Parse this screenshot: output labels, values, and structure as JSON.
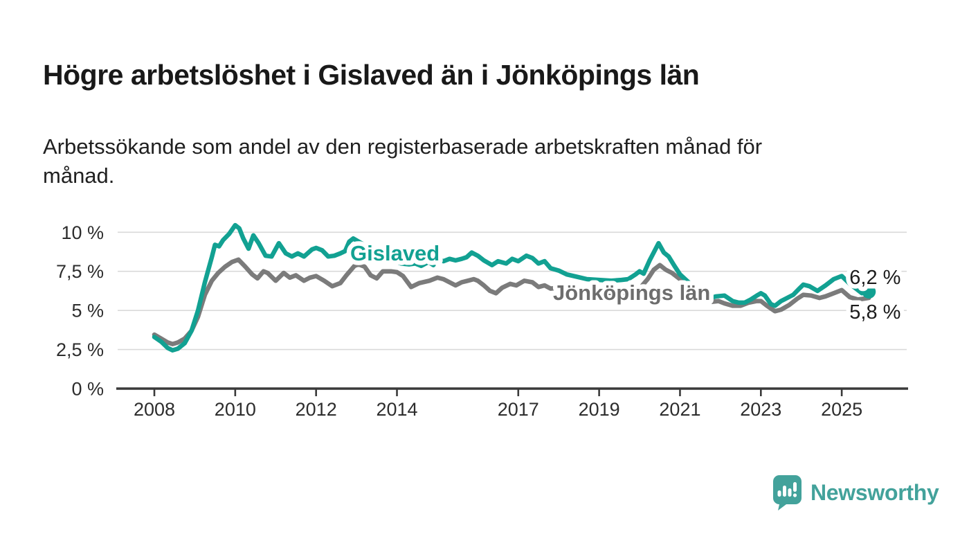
{
  "header": {
    "title": "Högre arbetslöshet i Gislaved än i Jönköpings län",
    "subtitle": "Arbetssökande som andel av den registerbaserade arbetskraften månad för\nmånad."
  },
  "colors": {
    "gislaved_teal": "#12a192",
    "jonkoping_gray": "#7b7b7b",
    "gray_label": "#6d6d6d",
    "gridline": "#d9d9d9",
    "axis": "#3a3a3a",
    "logo_teal": "#43a29b",
    "text_dark": "#1c1c1c"
  },
  "chart_data": {
    "type": "line",
    "unit": "%",
    "grid": "horizontal",
    "x_axis": {
      "ticks": [
        2008,
        2010,
        2012,
        2014,
        2017,
        2019,
        2021,
        2023,
        2025
      ],
      "tick_labels": [
        "2008",
        "2010",
        "2012",
        "2014",
        "2017",
        "2019",
        "2021",
        "2023",
        "2025"
      ],
      "range": [
        2008.0,
        2025.67
      ]
    },
    "y_axis": {
      "ticks": [
        0,
        2.5,
        5,
        7.5,
        10
      ],
      "tick_labels": [
        "0 %",
        "2,5 %",
        "5 %",
        "7,5 %",
        "10 %"
      ],
      "range": [
        0,
        10.45
      ]
    },
    "series": [
      {
        "name": "Gislaved",
        "color": "#12a192",
        "end_value": 6.2,
        "end_label": "6,2 %",
        "x": [
          2008.0,
          2008.17,
          2008.33,
          2008.45,
          2008.58,
          2008.75,
          2008.92,
          2009.08,
          2009.25,
          2009.42,
          2009.5,
          2009.6,
          2009.7,
          2009.85,
          2010.0,
          2010.1,
          2010.2,
          2010.33,
          2010.45,
          2010.58,
          2010.75,
          2010.9,
          2011.08,
          2011.25,
          2011.4,
          2011.55,
          2011.7,
          2011.9,
          2012.0,
          2012.15,
          2012.3,
          2012.45,
          2012.6,
          2012.72,
          2012.82,
          2012.92,
          2013.15,
          2013.4,
          2013.65,
          2013.9,
          2014.1,
          2014.3,
          2014.45,
          2014.6,
          2014.78,
          2014.9,
          2015.0,
          2015.15,
          2015.3,
          2015.45,
          2015.6,
          2015.72,
          2015.85,
          2016.0,
          2016.15,
          2016.35,
          2016.5,
          2016.7,
          2016.85,
          2017.0,
          2017.2,
          2017.35,
          2017.5,
          2017.65,
          2017.8,
          2018.0,
          2018.2,
          2018.45,
          2018.7,
          2019.0,
          2019.3,
          2019.55,
          2019.72,
          2019.9,
          2020.0,
          2020.1,
          2020.25,
          2020.47,
          2020.6,
          2020.72,
          2020.85,
          2021.0,
          2021.15,
          2021.3,
          2021.45,
          2021.6,
          2021.75,
          2021.9,
          2022.1,
          2022.3,
          2022.45,
          2022.6,
          2022.75,
          2022.9,
          2023.0,
          2023.1,
          2023.25,
          2023.35,
          2023.5,
          2023.65,
          2023.8,
          2023.95,
          2024.05,
          2024.2,
          2024.4,
          2024.6,
          2024.8,
          2025.0,
          2025.2,
          2025.35,
          2025.5,
          2025.67
        ],
        "values": [
          3.3,
          3.0,
          2.6,
          2.45,
          2.55,
          2.9,
          3.7,
          5.0,
          6.8,
          8.4,
          9.2,
          9.1,
          9.5,
          9.9,
          10.45,
          10.25,
          9.6,
          8.95,
          9.8,
          9.3,
          8.5,
          8.45,
          9.3,
          8.65,
          8.45,
          8.65,
          8.45,
          8.9,
          9.0,
          8.85,
          8.45,
          8.5,
          8.65,
          8.8,
          9.4,
          9.6,
          9.25,
          8.85,
          8.5,
          8.2,
          8.0,
          7.95,
          8.0,
          7.85,
          8.1,
          7.9,
          8.3,
          8.15,
          8.3,
          8.2,
          8.3,
          8.4,
          8.7,
          8.5,
          8.2,
          7.9,
          8.15,
          8.0,
          8.3,
          8.15,
          8.5,
          8.35,
          8.0,
          8.15,
          7.7,
          7.55,
          7.3,
          7.15,
          7.0,
          6.95,
          6.9,
          6.95,
          7.0,
          7.3,
          7.5,
          7.35,
          8.2,
          9.3,
          8.7,
          8.45,
          7.9,
          7.3,
          6.95,
          6.6,
          6.3,
          6.05,
          5.8,
          5.9,
          5.95,
          5.6,
          5.5,
          5.5,
          5.7,
          5.95,
          6.1,
          5.95,
          5.4,
          5.3,
          5.6,
          5.8,
          6.0,
          6.4,
          6.65,
          6.55,
          6.25,
          6.6,
          7.0,
          7.2,
          6.7,
          6.4,
          6.1,
          6.2
        ]
      },
      {
        "name": "Jönköpings län",
        "color": "#7b7b7b",
        "end_value": 5.8,
        "end_label": "5,8 %",
        "x": [
          2008.0,
          2008.17,
          2008.33,
          2008.45,
          2008.58,
          2008.75,
          2008.92,
          2009.08,
          2009.25,
          2009.42,
          2009.58,
          2009.75,
          2009.92,
          2010.08,
          2010.25,
          2010.42,
          2010.55,
          2010.7,
          2010.8,
          2011.0,
          2011.2,
          2011.35,
          2011.5,
          2011.7,
          2011.85,
          2012.0,
          2012.2,
          2012.4,
          2012.6,
          2012.75,
          2012.95,
          2013.05,
          2013.2,
          2013.35,
          2013.5,
          2013.65,
          2013.85,
          2014.0,
          2014.15,
          2014.35,
          2014.55,
          2014.8,
          2015.0,
          2015.15,
          2015.3,
          2015.45,
          2015.6,
          2015.75,
          2015.9,
          2016.0,
          2016.15,
          2016.3,
          2016.45,
          2016.6,
          2016.8,
          2016.95,
          2017.15,
          2017.35,
          2017.5,
          2017.65,
          2017.8,
          2018.0,
          2018.25,
          2018.5,
          2018.75,
          2019.0,
          2019.25,
          2019.5,
          2019.75,
          2020.0,
          2020.2,
          2020.35,
          2020.5,
          2020.65,
          2020.8,
          2021.0,
          2021.2,
          2021.35,
          2021.5,
          2021.65,
          2021.8,
          2021.95,
          2022.1,
          2022.3,
          2022.5,
          2022.7,
          2022.9,
          2023.0,
          2023.15,
          2023.35,
          2023.5,
          2023.7,
          2023.9,
          2024.05,
          2024.25,
          2024.45,
          2024.6,
          2024.8,
          2025.0,
          2025.2,
          2025.4,
          2025.55,
          2025.67
        ],
        "values": [
          3.45,
          3.2,
          2.95,
          2.85,
          2.95,
          3.2,
          3.7,
          4.6,
          6.0,
          6.9,
          7.4,
          7.8,
          8.1,
          8.25,
          7.8,
          7.3,
          7.05,
          7.5,
          7.4,
          6.9,
          7.4,
          7.1,
          7.25,
          6.9,
          7.1,
          7.2,
          6.9,
          6.55,
          6.75,
          7.25,
          7.85,
          7.95,
          7.8,
          7.25,
          7.05,
          7.5,
          7.5,
          7.45,
          7.2,
          6.5,
          6.75,
          6.9,
          7.1,
          7.0,
          6.8,
          6.6,
          6.8,
          6.9,
          7.0,
          6.9,
          6.6,
          6.25,
          6.1,
          6.45,
          6.7,
          6.6,
          6.9,
          6.8,
          6.5,
          6.6,
          6.4,
          6.45,
          6.3,
          6.2,
          6.1,
          6.0,
          6.05,
          6.1,
          6.2,
          6.4,
          7.0,
          7.6,
          7.9,
          7.6,
          7.4,
          7.0,
          6.5,
          6.05,
          5.85,
          5.7,
          5.55,
          5.6,
          5.45,
          5.3,
          5.3,
          5.5,
          5.6,
          5.6,
          5.3,
          4.95,
          5.05,
          5.35,
          5.75,
          6.0,
          5.95,
          5.8,
          5.9,
          6.1,
          6.3,
          5.85,
          5.7,
          5.75,
          5.8
        ]
      }
    ]
  },
  "footer": {
    "brand": "Newsworthy"
  }
}
